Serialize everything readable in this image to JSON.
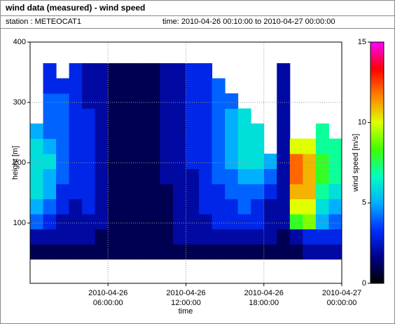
{
  "chart_data": {
    "type": "heatmap",
    "title": "wind data (measured) - wind speed",
    "station": "station : METEOCAT1",
    "period": "time: 2010-04-26 00:10:00 to 2010-04-27 00:00:00",
    "xlabel": "time",
    "ylabel": "height [m]",
    "colorbar_label": "wind speed [m/s]",
    "xlim": [
      "2010-04-26 00:00:00",
      "2010-04-27 00:00:00"
    ],
    "xticks": [
      "2010-04-26 06:00:00",
      "2010-04-26 12:00:00",
      "2010-04-26 18:00:00",
      "2010-04-27 00:00:00"
    ],
    "ylim": [
      0,
      400
    ],
    "yticks": [
      100,
      200,
      300,
      400
    ],
    "grid": true,
    "clim": [
      0,
      15
    ],
    "cticks": [
      0,
      5,
      10,
      15
    ],
    "colormap": [
      "#000000",
      "#00008b",
      "#0030ff",
      "#00b0ff",
      "#00ffc0",
      "#40ff00",
      "#e0ff00",
      "#ff8000",
      "#ff0000",
      "#ff00ff"
    ],
    "x_bins": [
      "2010-04-26 00:00:00",
      "2010-04-26 01:00:00",
      "2010-04-26 02:00:00",
      "2010-04-26 03:00:00",
      "2010-04-26 04:00:00",
      "2010-04-26 05:00:00",
      "2010-04-26 06:00:00",
      "2010-04-26 07:00:00",
      "2010-04-26 08:00:00",
      "2010-04-26 09:00:00",
      "2010-04-26 10:00:00",
      "2010-04-26 11:00:00",
      "2010-04-26 12:00:00",
      "2010-04-26 13:00:00",
      "2010-04-26 14:00:00",
      "2010-04-26 15:00:00",
      "2010-04-26 16:00:00",
      "2010-04-26 17:00:00",
      "2010-04-26 18:00:00",
      "2010-04-26 19:00:00",
      "2010-04-26 20:00:00",
      "2010-04-26 21:00:00",
      "2010-04-26 22:00:00",
      "2010-04-26 23:00:00",
      "2010-04-27 00:00:00"
    ],
    "y_bins": [
      40,
      65,
      90,
      115,
      140,
      165,
      190,
      215,
      240,
      265,
      290,
      315,
      340,
      365
    ],
    "values": [
      [
        1,
        1,
        1,
        1,
        1,
        1,
        1,
        1,
        1,
        1,
        1,
        1,
        1,
        1,
        1,
        1,
        1,
        1,
        1,
        1,
        1,
        2,
        2,
        2
      ],
      [
        2,
        2,
        2,
        2,
        2,
        1,
        1,
        1,
        1,
        1,
        1,
        2,
        2,
        2,
        2,
        2,
        2,
        2,
        2,
        1,
        2,
        3,
        3,
        3
      ],
      [
        4,
        3,
        2,
        2,
        2,
        2,
        1,
        1,
        1,
        1,
        1,
        2,
        2,
        2,
        3,
        3,
        3,
        3,
        2,
        2,
        8,
        9,
        5,
        4
      ],
      [
        5,
        4,
        3,
        2,
        3,
        2,
        1,
        1,
        1,
        1,
        1,
        2,
        2,
        3,
        3,
        3,
        4,
        3,
        2,
        2,
        10,
        10,
        6,
        5
      ],
      [
        6,
        5,
        3,
        3,
        3,
        2,
        1,
        1,
        1,
        1,
        1,
        2,
        2,
        3,
        3,
        4,
        4,
        4,
        3,
        2,
        11,
        11,
        7,
        6
      ],
      [
        6,
        5,
        4,
        3,
        3,
        2,
        1,
        1,
        1,
        1,
        2,
        2,
        2,
        3,
        4,
        4,
        5,
        5,
        4,
        2,
        12,
        11,
        8,
        7
      ],
      [
        6,
        6,
        4,
        3,
        3,
        2,
        1,
        1,
        1,
        1,
        2,
        2,
        3,
        3,
        4,
        5,
        6,
        6,
        5,
        2,
        12,
        11,
        8,
        7
      ],
      [
        6,
        5,
        4,
        3,
        3,
        2,
        1,
        1,
        1,
        1,
        2,
        2,
        3,
        3,
        4,
        5,
        6,
        6,
        null,
        2,
        10,
        10,
        7,
        7
      ],
      [
        5,
        4,
        4,
        3,
        3,
        2,
        1,
        1,
        1,
        1,
        2,
        2,
        3,
        3,
        4,
        5,
        6,
        6,
        null,
        2,
        null,
        null,
        7,
        null
      ],
      [
        null,
        4,
        4,
        3,
        3,
        2,
        1,
        1,
        1,
        1,
        2,
        2,
        3,
        3,
        4,
        5,
        6,
        null,
        null,
        2,
        null,
        null,
        null,
        null
      ],
      [
        null,
        4,
        4,
        3,
        2,
        2,
        1,
        1,
        1,
        1,
        2,
        2,
        3,
        3,
        4,
        4,
        null,
        null,
        null,
        2,
        null,
        null,
        null,
        null
      ],
      [
        null,
        3,
        3,
        3,
        2,
        2,
        1,
        1,
        1,
        1,
        2,
        2,
        3,
        3,
        4,
        null,
        null,
        null,
        null,
        2,
        null,
        null,
        null,
        null
      ],
      [
        null,
        3,
        null,
        3,
        2,
        2,
        1,
        1,
        1,
        1,
        2,
        2,
        3,
        3,
        null,
        null,
        null,
        null,
        null,
        2,
        null,
        null,
        null,
        null
      ]
    ]
  }
}
